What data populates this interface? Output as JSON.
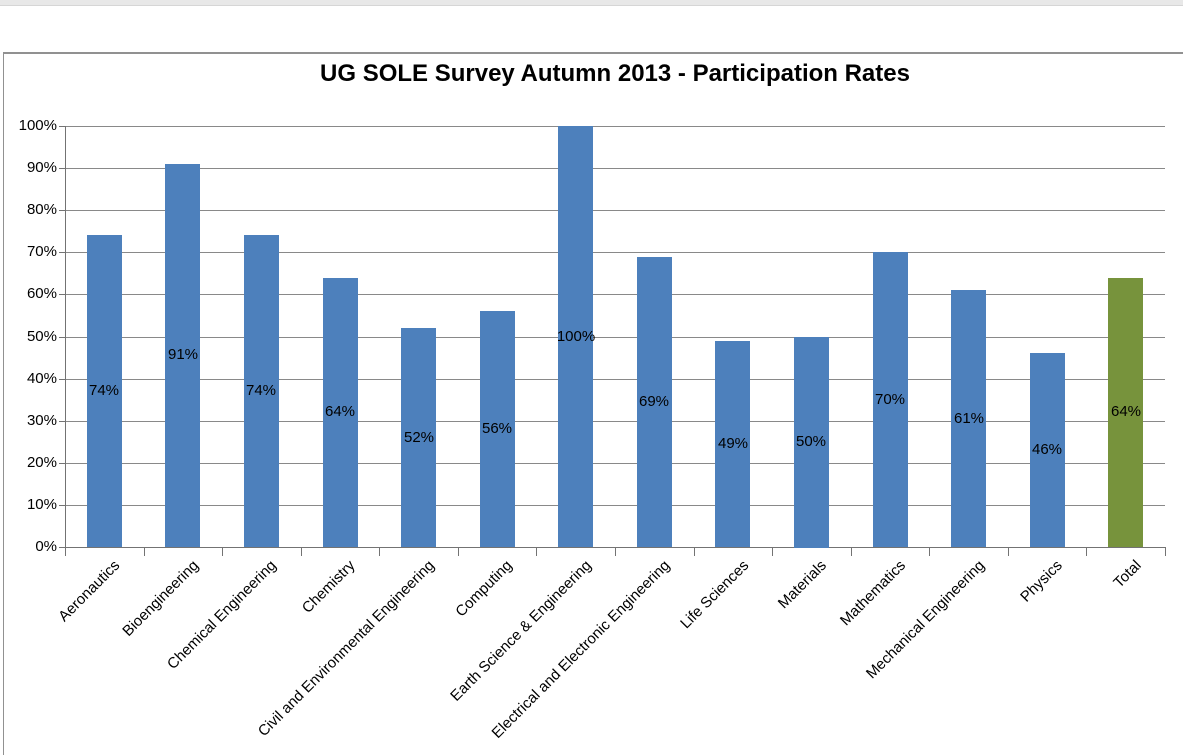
{
  "chart_data": {
    "type": "bar",
    "title": "UG SOLE Survey Autumn 2013 - Participation Rates",
    "categories": [
      "Aeronautics",
      "Bioengineering",
      "Chemical Engineering",
      "Chemistry",
      "Civil and Environmental Engineering",
      "Computing",
      "Earth Science & Engineering",
      "Electrical and Electronic Engineering",
      "Life Sciences",
      "Materials",
      "Mathematics",
      "Mechanical Engineering",
      "Physics",
      "Total"
    ],
    "values": [
      74,
      91,
      74,
      64,
      52,
      56,
      100,
      69,
      49,
      50,
      70,
      61,
      46,
      64
    ],
    "data_labels": [
      "74%",
      "91%",
      "74%",
      "64%",
      "52%",
      "56%",
      "100%",
      "69%",
      "49%",
      "50%",
      "70%",
      "61%",
      "46%",
      "64%"
    ],
    "bar_colors": [
      "#4d80bc",
      "#4d80bc",
      "#4d80bc",
      "#4d80bc",
      "#4d80bc",
      "#4d80bc",
      "#4d80bc",
      "#4d80bc",
      "#4d80bc",
      "#4d80bc",
      "#4d80bc",
      "#4d80bc",
      "#4d80bc",
      "#77933c"
    ],
    "highlight_category": "Total",
    "y_tick_labels": [
      "0%",
      "10%",
      "20%",
      "30%",
      "40%",
      "50%",
      "60%",
      "70%",
      "80%",
      "90%",
      "100%"
    ],
    "ylim": [
      0,
      100
    ],
    "xlabel": "",
    "ylabel": "",
    "grid": true,
    "legend": "none",
    "label_position": "center",
    "colors": {
      "bar_blue": "#4d80bc",
      "bar_green": "#77933c",
      "gridline": "#898989",
      "axis": "#737373",
      "chart_border": "#919191",
      "top_strip": "#e8e8e8",
      "text": "#000000"
    }
  }
}
